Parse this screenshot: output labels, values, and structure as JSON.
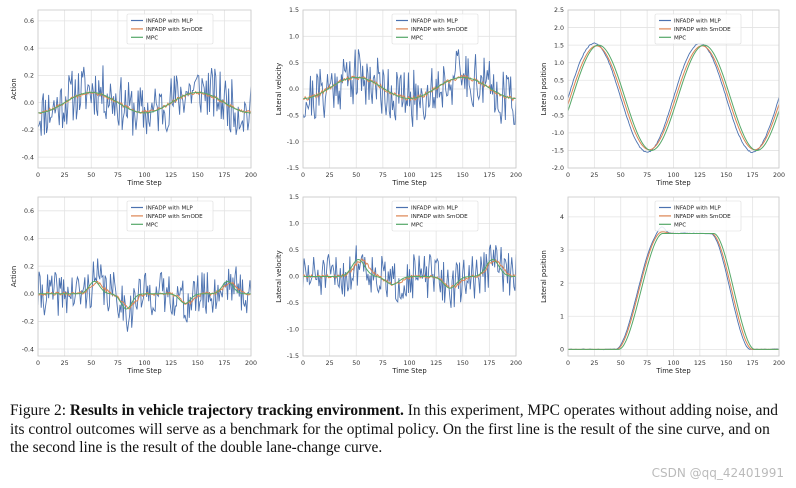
{
  "figure": {
    "caption_label": "Figure 2:",
    "caption_bold": "Results in vehicle trajectory tracking environment.",
    "caption_rest": "In this experiment, MPC operates without adding noise, and its control outcomes will serve as a benchmark for the optimal policy. On the first line is the result of the sine curve, and on the second line is the result of the double lane-change curve.",
    "watermark": "CSDN @qq_42401991"
  },
  "colors": {
    "mlp": "#4c72b0",
    "smode": "#dd8452",
    "mpc": "#55a868"
  },
  "chart_data": [
    {
      "id": "sine-action",
      "type": "line",
      "title": "",
      "xlabel": "Time Step",
      "ylabel": "Action",
      "xlim": [
        0,
        200
      ],
      "ylim": [
        -0.48,
        0.68
      ],
      "xticks": [
        0,
        25,
        50,
        75,
        100,
        125,
        150,
        175,
        200
      ],
      "yticks": [
        -0.4,
        -0.2,
        0.0,
        0.2,
        0.4,
        0.6
      ],
      "ytick_labels": [
        "-0.4",
        "-0.2",
        "0.0",
        "0.2",
        "0.4",
        "0.6"
      ],
      "grid": true,
      "legend_position": "top-right",
      "series": [
        {
          "name": "INFADP with MLP",
          "color": "#4c72b0",
          "generator": {
            "kind": "sine",
            "amp": 0.085,
            "period": 100,
            "phase": -25,
            "offset": 0.01,
            "noise": 0.2,
            "seed": 11
          }
        },
        {
          "name": "INFADP with SmODE",
          "color": "#dd8452",
          "generator": {
            "kind": "sine",
            "amp": 0.07,
            "period": 100,
            "phase": -25,
            "offset": 0.0,
            "noise": 0.012,
            "seed": 12
          }
        },
        {
          "name": "MPC",
          "color": "#55a868",
          "generator": {
            "kind": "sine",
            "amp": 0.075,
            "period": 100,
            "phase": -25,
            "offset": 0.0,
            "noise": 0.0,
            "seed": 13
          }
        }
      ]
    },
    {
      "id": "sine-lateral-velocity",
      "type": "line",
      "title": "",
      "xlabel": "Time Step",
      "ylabel": "Lateral velocity",
      "xlim": [
        0,
        200
      ],
      "ylim": [
        -1.5,
        1.5
      ],
      "xticks": [
        0,
        25,
        50,
        75,
        100,
        125,
        150,
        175,
        200
      ],
      "yticks": [
        -1.5,
        -1.0,
        -0.5,
        0.0,
        0.5,
        1.0,
        1.5
      ],
      "ytick_labels": [
        "-1.5",
        "-1.0",
        "-0.5",
        "0.0",
        "0.5",
        "1.0",
        "1.5"
      ],
      "grid": true,
      "legend_position": "top-right",
      "series": [
        {
          "name": "INFADP with MLP",
          "color": "#4c72b0",
          "generator": {
            "kind": "sine",
            "amp": 0.22,
            "period": 100,
            "phase": -25,
            "offset": 0.03,
            "noise": 0.55,
            "seed": 21
          }
        },
        {
          "name": "INFADP with SmODE",
          "color": "#dd8452",
          "generator": {
            "kind": "sine",
            "amp": 0.2,
            "period": 100,
            "phase": -25,
            "offset": 0.02,
            "noise": 0.04,
            "seed": 22
          }
        },
        {
          "name": "MPC",
          "color": "#55a868",
          "generator": {
            "kind": "sine",
            "amp": 0.2,
            "period": 100,
            "phase": -25,
            "offset": 0.02,
            "noise": 0.0,
            "seed": 23
          }
        }
      ]
    },
    {
      "id": "sine-lateral-position",
      "type": "line",
      "title": "",
      "xlabel": "Time Step",
      "ylabel": "Lateral position",
      "xlim": [
        0,
        200
      ],
      "ylim": [
        -2.0,
        2.5
      ],
      "xticks": [
        0,
        25,
        50,
        75,
        100,
        125,
        150,
        175,
        200
      ],
      "yticks": [
        -2.0,
        -1.5,
        -1.0,
        -0.5,
        0.0,
        0.5,
        1.0,
        1.5,
        2.0,
        2.5
      ],
      "ytick_labels": [
        "-2.0",
        "-1.5",
        "-1.0",
        "-0.5",
        "0.0",
        "0.5",
        "1.0",
        "1.5",
        "2.0",
        "2.5"
      ],
      "grid": true,
      "legend_position": "top-right",
      "series": [
        {
          "name": "INFADP with MLP",
          "color": "#4c72b0",
          "generator": {
            "kind": "sine",
            "amp": 1.55,
            "period": 100,
            "phase": 0,
            "offset": 0.0,
            "noise": 0.015,
            "seed": 31
          }
        },
        {
          "name": "INFADP with SmODE",
          "color": "#dd8452",
          "generator": {
            "kind": "sine",
            "amp": 1.48,
            "period": 100,
            "phase": -2,
            "offset": 0.0,
            "noise": 0.0,
            "seed": 32
          }
        },
        {
          "name": "MPC",
          "color": "#55a868",
          "generator": {
            "kind": "sine",
            "amp": 1.5,
            "period": 100,
            "phase": -4,
            "offset": 0.0,
            "noise": 0.0,
            "seed": 33
          }
        }
      ]
    },
    {
      "id": "dlc-action",
      "type": "line",
      "title": "",
      "xlabel": "Time Step",
      "ylabel": "Action",
      "xlim": [
        0,
        200
      ],
      "ylim": [
        -0.45,
        0.7
      ],
      "xticks": [
        0,
        25,
        50,
        75,
        100,
        125,
        150,
        175,
        200
      ],
      "yticks": [
        -0.4,
        -0.2,
        0.0,
        0.2,
        0.4,
        0.6
      ],
      "ytick_labels": [
        "-0.4",
        "-0.2",
        "0.0",
        "0.2",
        "0.4",
        "0.6"
      ],
      "grid": true,
      "legend_position": "top-right",
      "series": [
        {
          "name": "INFADP with MLP",
          "color": "#4c72b0",
          "generator": {
            "kind": "bumps",
            "bumps": [
              [
                55,
                0.1,
                5
              ],
              [
                85,
                -0.12,
                5
              ],
              [
                140,
                -0.08,
                5
              ],
              [
                180,
                0.1,
                5
              ]
            ],
            "noise": 0.16,
            "seed": 41
          }
        },
        {
          "name": "INFADP with SmODE",
          "color": "#dd8452",
          "generator": {
            "kind": "bumps",
            "bumps": [
              [
                55,
                0.08,
                6
              ],
              [
                85,
                -0.1,
                6
              ],
              [
                140,
                -0.07,
                6
              ],
              [
                180,
                0.08,
                6
              ]
            ],
            "noise": 0.012,
            "seed": 42
          }
        },
        {
          "name": "MPC",
          "color": "#55a868",
          "generator": {
            "kind": "bumps",
            "bumps": [
              [
                53,
                0.09,
                5
              ],
              [
                83,
                -0.11,
                5
              ],
              [
                138,
                -0.07,
                5
              ],
              [
                178,
                0.09,
                5
              ]
            ],
            "noise": 0.0,
            "seed": 43
          }
        }
      ]
    },
    {
      "id": "dlc-lateral-velocity",
      "type": "line",
      "title": "",
      "xlabel": "Time Step",
      "ylabel": "Lateral velocity",
      "xlim": [
        0,
        200
      ],
      "ylim": [
        -1.5,
        1.5
      ],
      "xticks": [
        0,
        25,
        50,
        75,
        100,
        125,
        150,
        175,
        200
      ],
      "yticks": [
        -1.5,
        -1.0,
        -0.5,
        0.0,
        0.5,
        1.0,
        1.5
      ],
      "ytick_labels": [
        "-1.5",
        "-1.0",
        "-0.5",
        "0.0",
        "0.5",
        "1.0",
        "1.5"
      ],
      "grid": true,
      "legend_position": "top-right",
      "series": [
        {
          "name": "INFADP with MLP",
          "color": "#4c72b0",
          "generator": {
            "kind": "bumps",
            "bumps": [
              [
                55,
                0.3,
                6
              ],
              [
                85,
                -0.15,
                6
              ],
              [
                140,
                -0.2,
                6
              ],
              [
                180,
                0.3,
                6
              ]
            ],
            "noise": 0.42,
            "seed": 51
          }
        },
        {
          "name": "INFADP with SmODE",
          "color": "#dd8452",
          "generator": {
            "kind": "bumps",
            "bumps": [
              [
                55,
                0.3,
                7
              ],
              [
                85,
                -0.15,
                7
              ],
              [
                140,
                -0.2,
                7
              ],
              [
                180,
                0.3,
                7
              ]
            ],
            "noise": 0.03,
            "seed": 52
          }
        },
        {
          "name": "MPC",
          "color": "#55a868",
          "generator": {
            "kind": "bumps",
            "bumps": [
              [
                52,
                0.32,
                6
              ],
              [
                84,
                -0.15,
                6
              ],
              [
                138,
                -0.22,
                6
              ],
              [
                178,
                0.32,
                6
              ]
            ],
            "noise": 0.0,
            "seed": 53
          }
        }
      ]
    },
    {
      "id": "dlc-lateral-position",
      "type": "line",
      "title": "",
      "xlabel": "Time Step",
      "ylabel": "Lateral position",
      "xlim": [
        0,
        200
      ],
      "ylim": [
        -0.2,
        4.6
      ],
      "xticks": [
        0,
        25,
        50,
        75,
        100,
        125,
        150,
        175,
        200
      ],
      "yticks": [
        0,
        1,
        2,
        3,
        4
      ],
      "ytick_labels": [
        "0",
        "1",
        "2",
        "3",
        "4"
      ],
      "grid": true,
      "legend_position": "top-right",
      "series": [
        {
          "name": "INFADP with MLP",
          "color": "#4c72b0",
          "generator": {
            "kind": "plateau",
            "rise": [
              45,
              87
            ],
            "fall": [
              135,
              173
            ],
            "high": 3.5,
            "overshoot": 0.2,
            "noise": 0.02,
            "seed": 61
          }
        },
        {
          "name": "INFADP with SmODE",
          "color": "#dd8452",
          "generator": {
            "kind": "plateau",
            "rise": [
              46,
              88
            ],
            "fall": [
              136,
              175
            ],
            "high": 3.5,
            "overshoot": 0.05,
            "noise": 0.0,
            "seed": 62
          }
        },
        {
          "name": "MPC",
          "color": "#55a868",
          "generator": {
            "kind": "plateau",
            "rise": [
              48,
              90
            ],
            "fall": [
              138,
              177
            ],
            "high": 3.5,
            "overshoot": 0.0,
            "noise": 0.0,
            "seed": 63
          }
        }
      ]
    }
  ]
}
